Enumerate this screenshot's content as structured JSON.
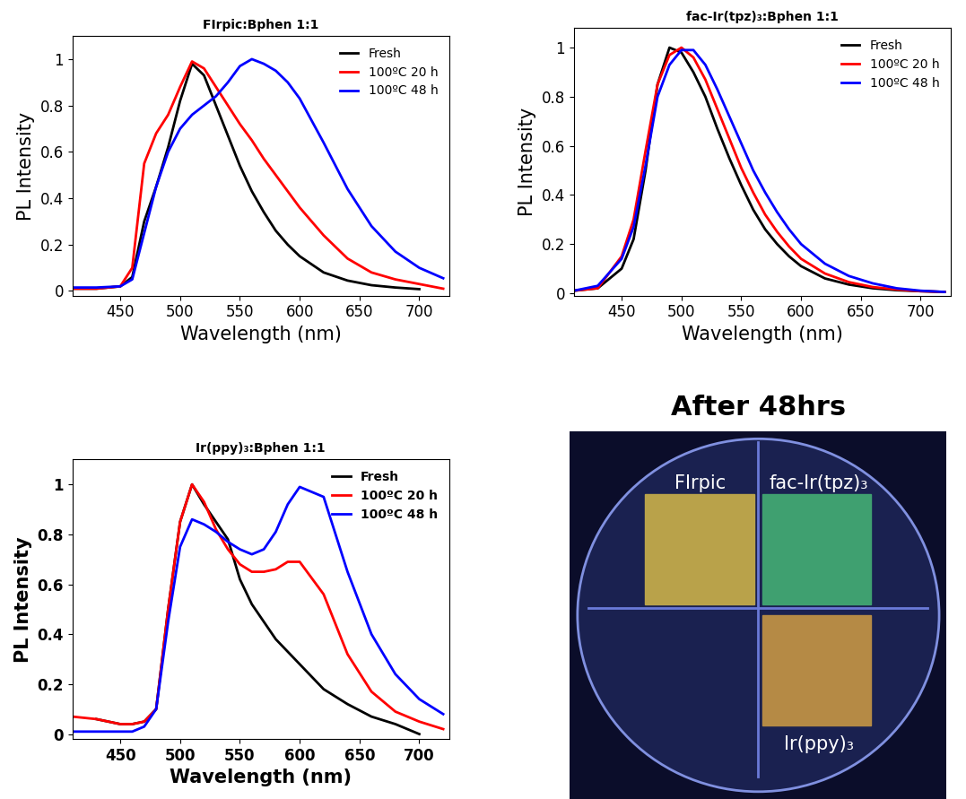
{
  "chart_data": [
    {
      "type": "line",
      "title": "FIrpic:Bphen 1:1",
      "x_label": "Wavelength (nm)",
      "y_label": "PL Intensity",
      "x": [
        410,
        430,
        450,
        460,
        470,
        480,
        490,
        500,
        510,
        520,
        530,
        540,
        550,
        560,
        570,
        580,
        590,
        600,
        620,
        640,
        660,
        680,
        700,
        720
      ],
      "series": [
        {
          "name": "Fresh",
          "color": "#000000",
          "values": [
            0.01,
            0.01,
            0.02,
            0.06,
            0.3,
            0.45,
            0.62,
            0.82,
            0.98,
            0.93,
            0.8,
            0.67,
            0.54,
            0.43,
            0.34,
            0.26,
            0.2,
            0.15,
            0.08,
            0.045,
            0.025,
            0.015,
            0.008,
            null
          ]
        },
        {
          "name": "100ºC 20 h",
          "color": "#ff0000",
          "values": [
            0.01,
            0.01,
            0.02,
            0.1,
            0.55,
            0.68,
            0.76,
            0.88,
            0.99,
            0.96,
            0.88,
            0.8,
            0.72,
            0.65,
            0.57,
            0.5,
            0.43,
            0.36,
            0.24,
            0.14,
            0.08,
            0.05,
            0.03,
            0.01
          ]
        },
        {
          "name": "100ºC 48 h",
          "color": "#0000ff",
          "values": [
            0.015,
            0.015,
            0.02,
            0.05,
            0.25,
            0.45,
            0.6,
            0.7,
            0.76,
            0.8,
            0.84,
            0.9,
            0.97,
            1.0,
            0.98,
            0.95,
            0.9,
            0.83,
            0.64,
            0.44,
            0.28,
            0.17,
            0.1,
            0.055
          ]
        }
      ],
      "xlim": [
        410,
        725
      ],
      "xticks": [
        450,
        500,
        550,
        600,
        650,
        700
      ],
      "ylim": [
        -0.02,
        1.1
      ],
      "yticks": [
        0,
        0.2,
        0.4,
        0.6,
        0.8,
        1
      ],
      "legend": "upper right"
    },
    {
      "type": "line",
      "title": "fac-Ir(tpz)₃:Bphen 1:1",
      "x_label": "Wavelength (nm)",
      "y_label": "PL Intensity",
      "x": [
        410,
        430,
        450,
        460,
        470,
        480,
        490,
        500,
        510,
        520,
        530,
        540,
        550,
        560,
        570,
        580,
        590,
        600,
        620,
        640,
        660,
        680,
        700,
        720
      ],
      "series": [
        {
          "name": "Fresh",
          "color": "#000000",
          "values": [
            0.01,
            0.02,
            0.1,
            0.22,
            0.5,
            0.85,
            1.0,
            0.98,
            0.9,
            0.8,
            0.67,
            0.55,
            0.44,
            0.34,
            0.26,
            0.2,
            0.15,
            0.11,
            0.06,
            0.035,
            0.02,
            0.012,
            0.008,
            0.005
          ]
        },
        {
          "name": "100ºC 20 h",
          "color": "#ff0000",
          "values": [
            0.01,
            0.02,
            0.15,
            0.3,
            0.58,
            0.85,
            0.97,
            1.0,
            0.96,
            0.87,
            0.75,
            0.63,
            0.51,
            0.41,
            0.32,
            0.25,
            0.19,
            0.14,
            0.08,
            0.045,
            0.025,
            0.015,
            0.008,
            0.005
          ]
        },
        {
          "name": "100ºC 48 h",
          "color": "#0000ff",
          "values": [
            0.01,
            0.03,
            0.14,
            0.27,
            0.52,
            0.8,
            0.93,
            0.99,
            0.99,
            0.93,
            0.83,
            0.72,
            0.61,
            0.5,
            0.41,
            0.33,
            0.26,
            0.2,
            0.12,
            0.07,
            0.04,
            0.02,
            0.01,
            0.005
          ]
        }
      ],
      "xlim": [
        410,
        725
      ],
      "xticks": [
        450,
        500,
        550,
        600,
        650,
        700
      ],
      "ylim": [
        -0.01,
        1.08
      ],
      "yticks": [
        0,
        0.2,
        0.4,
        0.6,
        0.8,
        1
      ],
      "legend": "upper right"
    },
    {
      "type": "line",
      "title": "Ir(ppy)₃:Bphen 1:1",
      "x_label": "Wavelength (nm)",
      "y_label": "PL Intensity",
      "x": [
        410,
        430,
        450,
        460,
        470,
        480,
        490,
        500,
        510,
        520,
        530,
        540,
        550,
        560,
        570,
        580,
        590,
        600,
        620,
        640,
        660,
        680,
        700,
        720
      ],
      "series": [
        {
          "name": "Fresh",
          "color": "#000000",
          "values": [
            null,
            0.06,
            0.04,
            0.04,
            0.05,
            0.1,
            0.5,
            0.85,
            1.0,
            0.92,
            0.85,
            0.78,
            0.62,
            0.52,
            0.45,
            0.38,
            0.33,
            0.28,
            0.18,
            0.12,
            0.07,
            0.04,
            0.0,
            null
          ]
        },
        {
          "name": "100ºC 20 h",
          "color": "#ff0000",
          "values": [
            0.07,
            0.06,
            0.04,
            0.04,
            0.05,
            0.1,
            0.5,
            0.85,
            1.0,
            0.93,
            0.82,
            0.74,
            0.68,
            0.65,
            0.65,
            0.66,
            0.69,
            0.69,
            0.56,
            0.32,
            0.17,
            0.09,
            0.05,
            0.02
          ]
        },
        {
          "name": "100ºC 48 h",
          "color": "#0000ff",
          "values": [
            0.01,
            0.01,
            0.01,
            0.01,
            0.03,
            0.1,
            0.45,
            0.75,
            0.86,
            0.84,
            0.81,
            0.77,
            0.74,
            0.72,
            0.74,
            0.81,
            0.92,
            0.99,
            0.95,
            0.65,
            0.4,
            0.24,
            0.14,
            0.08
          ]
        }
      ],
      "xlim": [
        410,
        725
      ],
      "xticks": [
        450,
        500,
        550,
        600,
        650,
        700
      ],
      "ylim": [
        -0.02,
        1.1
      ],
      "yticks": [
        0,
        0.2,
        0.4,
        0.6,
        0.8,
        1
      ],
      "legend": "upper right"
    }
  ],
  "photo": {
    "title": "After 48hrs",
    "labels": [
      "FIrpic",
      "fac-Ir(tpz)₃",
      "Ir(ppy)₃"
    ]
  }
}
